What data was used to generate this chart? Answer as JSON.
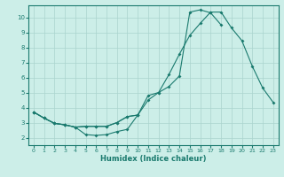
{
  "xlabel": "Humidex (Indice chaleur)",
  "xlim": [
    -0.5,
    23.5
  ],
  "ylim": [
    1.5,
    10.8
  ],
  "yticks": [
    2,
    3,
    4,
    5,
    6,
    7,
    8,
    9,
    10
  ],
  "xticks": [
    0,
    1,
    2,
    3,
    4,
    5,
    6,
    7,
    8,
    9,
    10,
    11,
    12,
    13,
    14,
    15,
    16,
    17,
    18,
    19,
    20,
    21,
    22,
    23
  ],
  "bg_color": "#cceee8",
  "grid_color": "#aad4ce",
  "line_color": "#1a7a6e",
  "curve1": {
    "x": [
      0,
      1,
      2,
      3,
      4,
      5,
      6,
      7,
      8,
      9,
      10
    ],
    "y": [
      3.7,
      3.3,
      2.95,
      2.85,
      2.7,
      2.2,
      2.15,
      2.2,
      2.4,
      2.55,
      3.5
    ]
  },
  "curve2": {
    "x": [
      0,
      1,
      2,
      3,
      4,
      5,
      6,
      7,
      8,
      9,
      10,
      11,
      12,
      13,
      14,
      15,
      16,
      17,
      18,
      19,
      20,
      21,
      22,
      23
    ],
    "y": [
      3.7,
      3.3,
      2.95,
      2.85,
      2.7,
      2.75,
      2.75,
      2.75,
      3.0,
      3.4,
      3.5,
      4.5,
      5.0,
      6.2,
      7.55,
      8.8,
      9.6,
      10.35,
      10.35,
      9.3,
      8.45,
      6.75,
      5.3,
      4.35
    ]
  },
  "curve3": {
    "x": [
      0,
      1,
      2,
      3,
      4,
      5,
      6,
      7,
      8,
      9,
      10,
      11,
      12,
      13,
      14,
      15,
      16,
      17,
      18
    ],
    "y": [
      3.7,
      3.3,
      2.95,
      2.85,
      2.7,
      2.75,
      2.75,
      2.75,
      3.0,
      3.4,
      3.5,
      4.8,
      5.0,
      5.4,
      6.1,
      10.35,
      10.5,
      10.3,
      9.5
    ]
  }
}
